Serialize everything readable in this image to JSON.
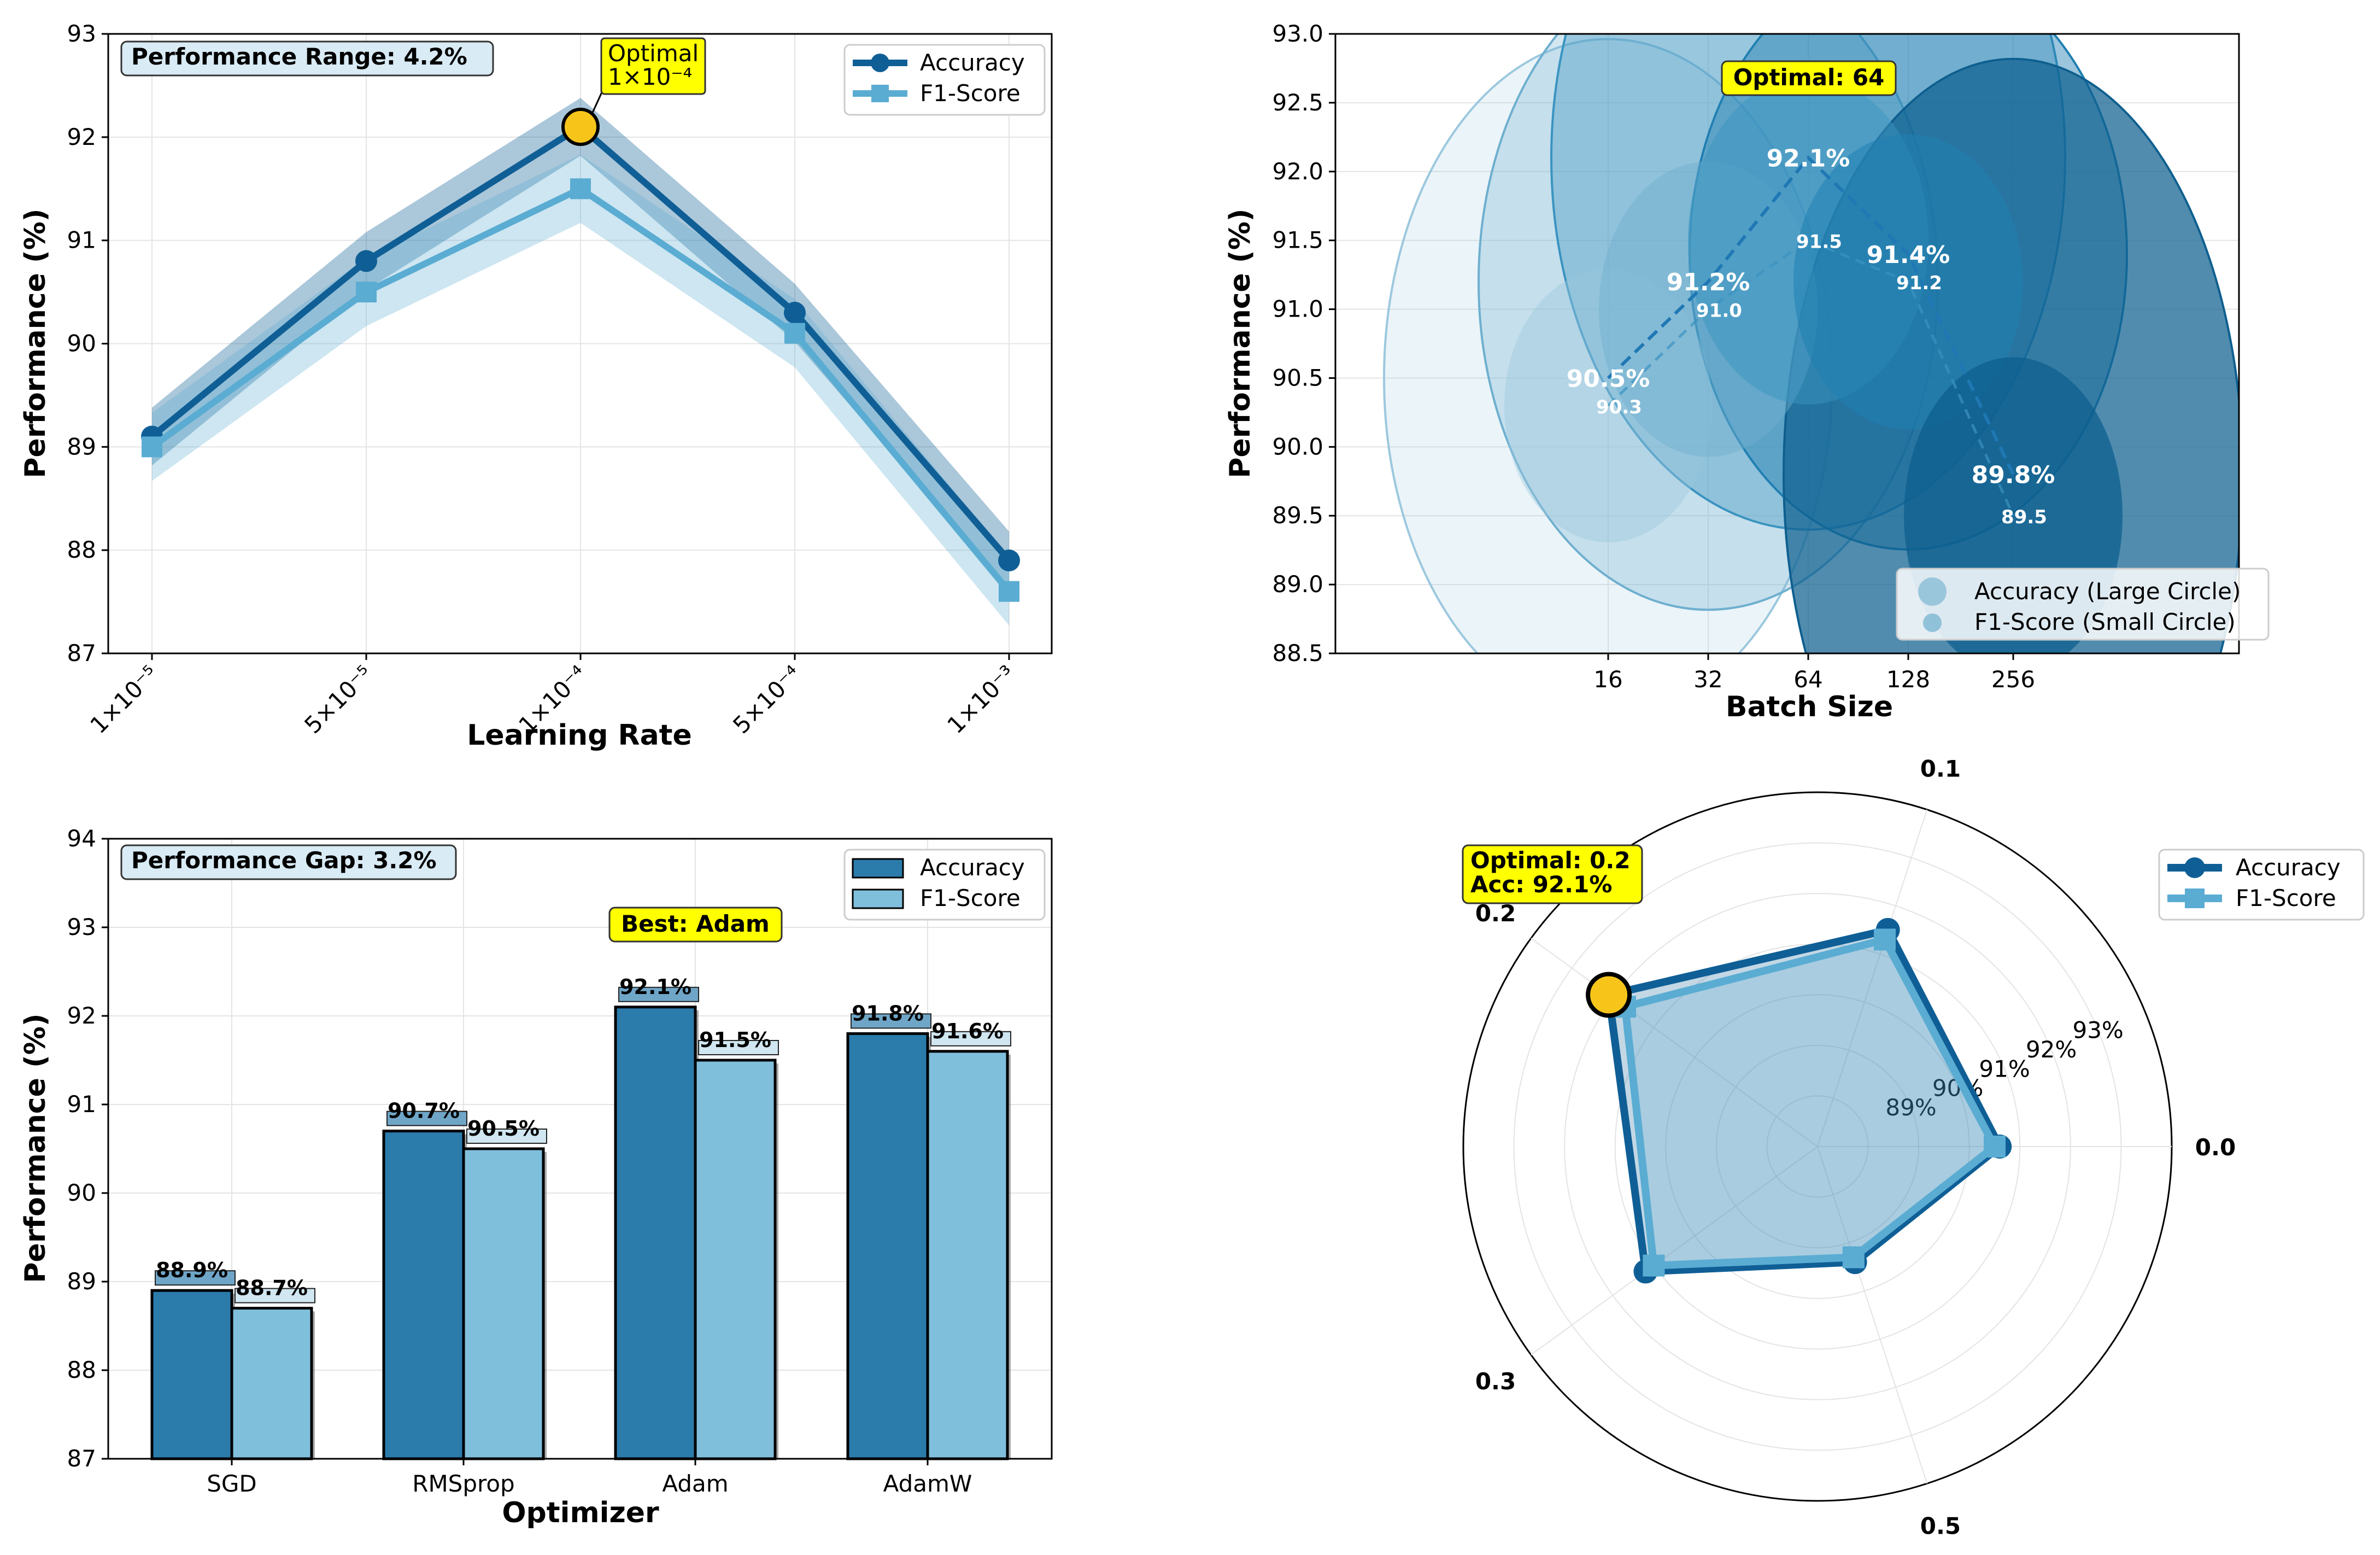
{
  "colors": {
    "accuracy": "#0f5f96",
    "f1": "#5aacd2",
    "accuracy_bar": "#2b7bab",
    "f1_bar": "#80bfdc",
    "highlight": "#ffff00",
    "optimal_marker": "#f7c51a",
    "annotation_box": "#d9ebf5"
  },
  "chart_data": [
    {
      "id": "learning_rate",
      "type": "line",
      "xlabel": "Learning Rate",
      "ylabel": "Performance (%)",
      "categories": [
        "1×10⁻⁵",
        "5×10⁻⁵",
        "1×10⁻⁴",
        "5×10⁻⁴",
        "1×10⁻³"
      ],
      "series": [
        {
          "name": "Accuracy",
          "values": [
            89.1,
            90.8,
            92.1,
            90.3,
            87.9
          ]
        },
        {
          "name": "F1-Score",
          "values": [
            89.0,
            90.5,
            91.5,
            90.1,
            87.6
          ]
        }
      ],
      "ylim": [
        87,
        93
      ],
      "yticks": [
        "87",
        "88",
        "89",
        "90",
        "91",
        "92",
        "93"
      ],
      "grid": true,
      "legend": "top-right",
      "annotation": "Performance Range: 4.2%",
      "optimal_label_line1": "Optimal",
      "optimal_label_line2": "1×10⁻⁴"
    },
    {
      "id": "batch_size",
      "type": "scatter",
      "xlabel": "Batch Size",
      "ylabel": "Performance (%)",
      "categories": [
        "16",
        "32",
        "64",
        "128",
        "256"
      ],
      "series": [
        {
          "name": "Accuracy (Large Circle)",
          "values": [
            90.5,
            91.2,
            92.1,
            91.4,
            89.8
          ],
          "labels": [
            "90.5%",
            "91.2%",
            "92.1%",
            "91.4%",
            "89.8%"
          ]
        },
        {
          "name": "F1-Score (Small Circle)",
          "values": [
            90.3,
            91.0,
            91.5,
            91.2,
            89.5
          ],
          "labels": [
            "90.3",
            "91.0",
            "91.5",
            "91.2",
            "89.5"
          ]
        }
      ],
      "ylim": [
        88.5,
        93.0
      ],
      "yticks": [
        "88.5",
        "89.0",
        "89.5",
        "90.0",
        "90.5",
        "91.0",
        "91.5",
        "92.0",
        "92.5",
        "93.0"
      ],
      "grid": true,
      "legend": "bottom-right",
      "annotation": "Optimal: 64"
    },
    {
      "id": "optimizer",
      "type": "bar",
      "xlabel": "Optimizer",
      "ylabel": "Performance (%)",
      "categories": [
        "SGD",
        "RMSprop",
        "Adam",
        "AdamW"
      ],
      "series": [
        {
          "name": "Accuracy",
          "values": [
            88.9,
            90.7,
            92.1,
            91.8
          ],
          "labels": [
            "88.9%",
            "90.7%",
            "92.1%",
            "91.8%"
          ]
        },
        {
          "name": "F1-Score",
          "values": [
            88.7,
            90.5,
            91.5,
            91.6
          ],
          "labels": [
            "88.7%",
            "90.5%",
            "91.5%",
            "91.6%"
          ]
        }
      ],
      "ylim": [
        87,
        94
      ],
      "yticks": [
        "87",
        "88",
        "89",
        "90",
        "91",
        "92",
        "93",
        "94"
      ],
      "grid": true,
      "legend": "top-right",
      "annotation": "Performance Gap: 3.2%",
      "best_label": "Best: Adam"
    },
    {
      "id": "dropout",
      "type": "radar",
      "categories": [
        "0.0",
        "0.1",
        "0.2",
        "0.3",
        "0.5"
      ],
      "series": [
        {
          "name": "Accuracy",
          "values": [
            90.6,
            91.5,
            92.1,
            91.2,
            89.4
          ]
        },
        {
          "name": "F1-Score",
          "values": [
            90.5,
            91.3,
            91.7,
            91.0,
            89.3
          ]
        }
      ],
      "radial_ticks": [
        "89%",
        "90%",
        "91%",
        "92%",
        "93%"
      ],
      "rlim": [
        87,
        94
      ],
      "legend": "top-right",
      "annotation_line1": "Optimal: 0.2",
      "annotation_line2": "Acc: 92.1%"
    }
  ]
}
